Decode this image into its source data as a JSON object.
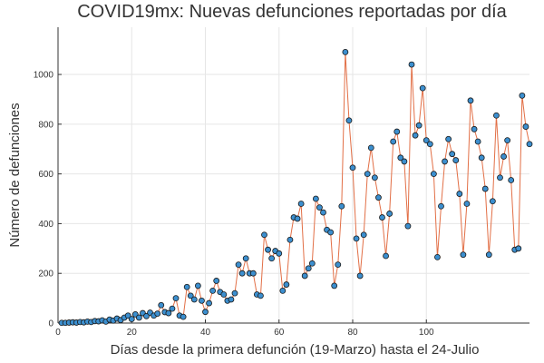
{
  "chart_data": {
    "type": "line",
    "title": "COVID19mx: Nuevas defunciones reportadas por día",
    "xlabel": "Días desde la primera defunción (19-Marzo) hasta el 24-Julio",
    "ylabel": "Número de defunciones",
    "xlim": [
      0,
      128
    ],
    "ylim": [
      0,
      1190
    ],
    "xticks": [
      0,
      20,
      40,
      60,
      80,
      100
    ],
    "yticks": [
      0,
      200,
      400,
      600,
      800,
      1000
    ],
    "grid": true,
    "legend": "none",
    "colors": {
      "line": "#e26f46",
      "marker_fill": "#3c8fcf",
      "marker_edge": "#1a1a1a",
      "grid": "#e6e6e6",
      "axis": "#333333"
    },
    "series": [
      {
        "x": [
          1,
          2,
          3,
          4,
          5,
          6,
          7,
          8,
          9,
          10,
          11,
          12,
          13,
          14,
          15,
          16,
          17,
          18,
          19,
          20,
          21,
          22,
          23,
          24,
          25,
          26,
          27,
          28,
          29,
          30,
          31,
          32,
          33,
          34,
          35,
          36,
          37,
          38,
          39,
          40,
          41,
          42,
          43,
          44,
          45,
          46,
          47,
          48,
          49,
          50,
          51,
          52,
          53,
          54,
          55,
          56,
          57,
          58,
          59,
          60,
          61,
          62,
          63,
          64,
          65,
          66,
          67,
          68,
          69,
          70,
          71,
          72,
          73,
          74,
          75,
          76,
          77,
          78,
          79,
          80,
          81,
          82,
          83,
          84,
          85,
          86,
          87,
          88,
          89,
          90,
          91,
          92,
          93,
          94,
          95,
          96,
          97,
          98,
          99,
          100,
          101,
          102,
          103,
          104,
          105,
          106,
          107,
          108,
          109,
          110,
          111,
          112,
          113,
          114,
          115,
          116,
          117,
          118,
          119,
          120,
          121,
          122,
          123,
          124,
          125,
          126,
          127,
          128
        ],
        "y": [
          1,
          1,
          2,
          3,
          2,
          4,
          3,
          6,
          4,
          8,
          7,
          11,
          6,
          14,
          10,
          18,
          12,
          22,
          30,
          16,
          35,
          22,
          40,
          28,
          42,
          30,
          38,
          72,
          44,
          40,
          58,
          100,
          30,
          25,
          145,
          110,
          95,
          150,
          90,
          45,
          80,
          130,
          170,
          125,
          115,
          90,
          95,
          120,
          235,
          200,
          260,
          200,
          200,
          115,
          110,
          355,
          295,
          260,
          290,
          280,
          130,
          155,
          335,
          425,
          420,
          480,
          190,
          220,
          240,
          500,
          465,
          445,
          375,
          365,
          150,
          235,
          470,
          1090,
          815,
          625,
          340,
          190,
          355,
          600,
          705,
          585,
          505,
          425,
          270,
          440,
          730,
          770,
          665,
          650,
          390,
          1040,
          755,
          795,
          945,
          735,
          720,
          600,
          265,
          470,
          650,
          740,
          680,
          655,
          520,
          275,
          480,
          895,
          780,
          730,
          665,
          540,
          275,
          490,
          835,
          585,
          670,
          735,
          575,
          295,
          300,
          915,
          790,
          720
        ]
      }
    ]
  }
}
